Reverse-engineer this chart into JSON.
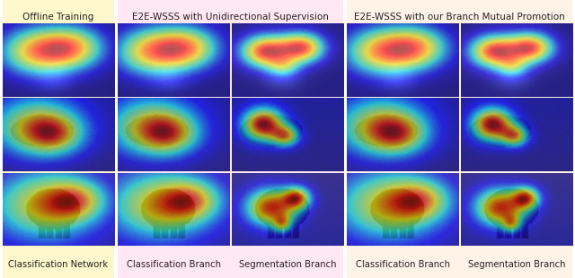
{
  "title_offline": "Offline Training",
  "title_uni": "E2E-WSSS with Unidirectional Supervision",
  "title_mutual": "E2E-WSSS with our Branch Mutual Promotion",
  "label_cls_net": "Classification Network",
  "label_cls_branch": "Classification Branch",
  "label_seg_branch": "Segmentation Branch",
  "bg_offline": "#FFF8CC",
  "bg_uni": "#FFE8F4",
  "bg_mutual": "#FFF3E8",
  "title_fontsize": 7.5,
  "label_fontsize": 7.2,
  "fig_width": 6.4,
  "fig_height": 3.1
}
